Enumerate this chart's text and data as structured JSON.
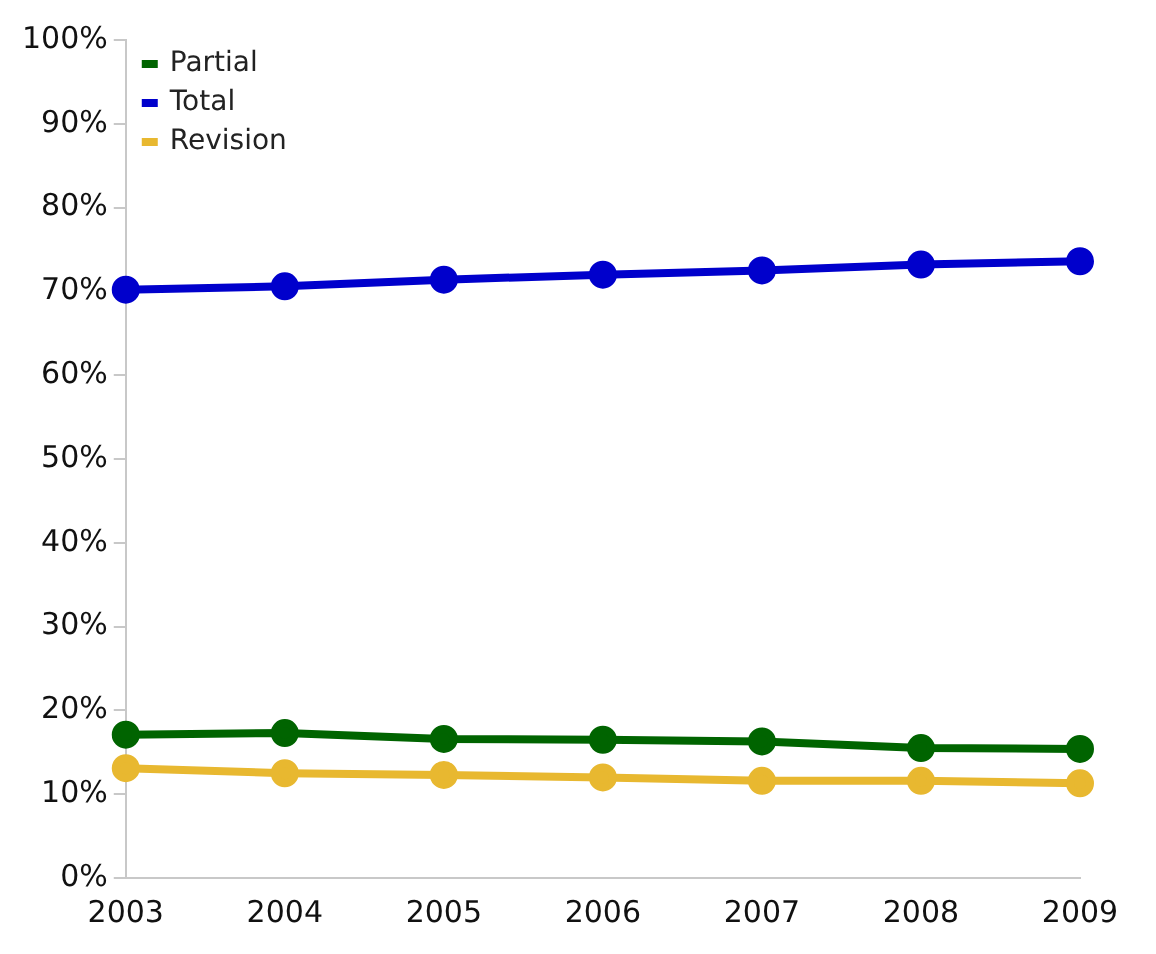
{
  "chart_data": {
    "type": "line",
    "categories": [
      "2003",
      "2004",
      "2005",
      "2006",
      "2007",
      "2008",
      "2009"
    ],
    "series": [
      {
        "name": "Partial",
        "color": "#006400",
        "values": [
          17.1,
          17.3,
          16.6,
          16.5,
          16.3,
          15.5,
          15.4
        ]
      },
      {
        "name": "Total",
        "color": "#0000cc",
        "values": [
          70.2,
          70.6,
          71.4,
          72.0,
          72.5,
          73.2,
          73.6
        ]
      },
      {
        "name": "Revision",
        "color": "#e8b830",
        "values": [
          13.1,
          12.5,
          12.3,
          12.0,
          11.6,
          11.6,
          11.3
        ]
      }
    ],
    "ylim": [
      0,
      100
    ],
    "yticks": [
      {
        "value": 0,
        "label": "0%"
      },
      {
        "value": 10,
        "label": "10%"
      },
      {
        "value": 20,
        "label": "20%"
      },
      {
        "value": 30,
        "label": "30%"
      },
      {
        "value": 40,
        "label": "40%"
      },
      {
        "value": 50,
        "label": "50%"
      },
      {
        "value": 60,
        "label": "60%"
      },
      {
        "value": 70,
        "label": "70%"
      },
      {
        "value": 80,
        "label": "80%"
      },
      {
        "value": 90,
        "label": "90%"
      },
      {
        "value": 100,
        "label": "100%"
      }
    ],
    "grid": false,
    "legend": "top left",
    "marker": "circle",
    "line_style": "solid"
  }
}
